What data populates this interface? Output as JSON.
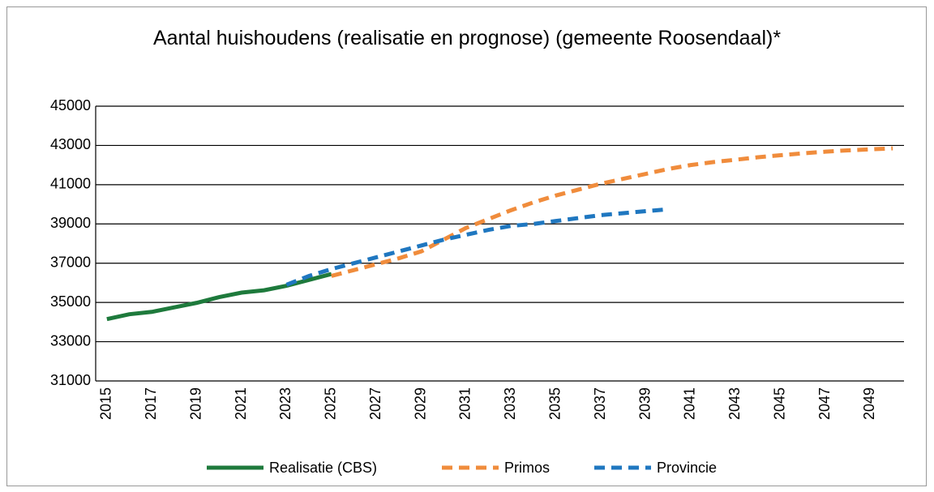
{
  "chart_data": {
    "type": "line",
    "title": "Aantal huishoudens (realisatie en prognose) (gemeente Roosendaal)*",
    "x": [
      2015,
      2016,
      2017,
      2018,
      2019,
      2020,
      2021,
      2022,
      2023,
      2024,
      2025,
      2026,
      2027,
      2028,
      2029,
      2030,
      2031,
      2032,
      2033,
      2034,
      2035,
      2036,
      2037,
      2038,
      2039,
      2040,
      2041,
      2042,
      2043,
      2044,
      2045,
      2046,
      2047,
      2048,
      2049,
      2050
    ],
    "series": [
      {
        "name": "Realisatie (CBS)",
        "color": "#1e7a3c",
        "dashed": false,
        "values": [
          34150,
          34400,
          34520,
          34750,
          34980,
          35270,
          35500,
          35620,
          35850,
          36150,
          36450,
          null,
          null,
          null,
          null,
          null,
          null,
          null,
          null,
          null,
          null,
          null,
          null,
          null,
          null,
          null,
          null,
          null,
          null,
          null,
          null,
          null,
          null,
          null,
          null,
          null
        ]
      },
      {
        "name": "Primos",
        "color": "#f08c3c",
        "dashed": true,
        "values": [
          null,
          null,
          null,
          null,
          null,
          null,
          null,
          null,
          null,
          null,
          36350,
          36650,
          36950,
          37250,
          37600,
          38200,
          38800,
          39250,
          39700,
          40100,
          40450,
          40750,
          41050,
          41300,
          41550,
          41800,
          42000,
          42150,
          42270,
          42400,
          42500,
          42600,
          42680,
          42750,
          42800,
          42850
        ]
      },
      {
        "name": "Provincie",
        "color": "#1f77c0",
        "dashed": true,
        "values": [
          null,
          null,
          null,
          null,
          null,
          null,
          null,
          null,
          35900,
          36350,
          36700,
          37000,
          37300,
          37600,
          37900,
          38200,
          38450,
          38700,
          38900,
          39000,
          39150,
          39300,
          39450,
          39550,
          39650,
          39750,
          null,
          null,
          null,
          null,
          null,
          null,
          null,
          null,
          null,
          null
        ]
      }
    ],
    "xlim": [
      2014.5,
      2050.5
    ],
    "xticks": [
      2015,
      2017,
      2019,
      2021,
      2023,
      2025,
      2027,
      2029,
      2031,
      2033,
      2035,
      2037,
      2039,
      2041,
      2043,
      2045,
      2047,
      2049
    ],
    "ylim": [
      31000,
      45000
    ],
    "yticks": [
      31000,
      33000,
      35000,
      37000,
      39000,
      41000,
      43000,
      45000
    ],
    "grid": true,
    "legend": "bottom"
  }
}
